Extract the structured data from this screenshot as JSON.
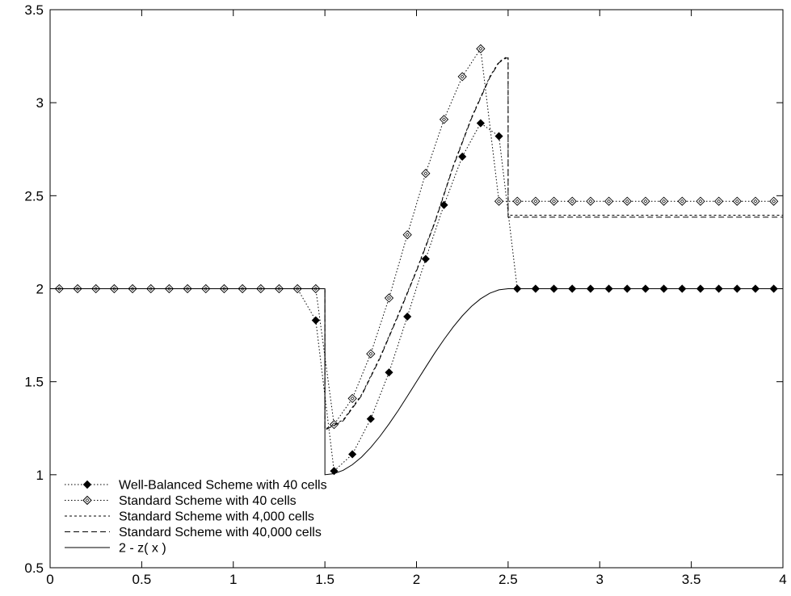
{
  "chart_data": {
    "type": "line",
    "title": "",
    "xlabel": "",
    "ylabel": "",
    "xlim": [
      0,
      4
    ],
    "ylim": [
      0.5,
      3.5
    ],
    "xticks": [
      "0",
      "0.5",
      "1",
      "1.5",
      "2",
      "2.5",
      "3",
      "3.5",
      "4"
    ],
    "yticks": [
      "0.5",
      "1",
      "1.5",
      "2",
      "2.5",
      "3",
      "3.5"
    ],
    "grid": false,
    "legend_position": "bottom-left",
    "series": [
      {
        "name": "Well-Balanced Scheme with 40 cells",
        "marker": "filled-diamond",
        "line": "dotted",
        "x": [
          0.05,
          0.15,
          0.25,
          0.35,
          0.45,
          0.55,
          0.65,
          0.75,
          0.85,
          0.95,
          1.05,
          1.15,
          1.25,
          1.35,
          1.45,
          1.55,
          1.65,
          1.75,
          1.85,
          1.95,
          2.05,
          2.15,
          2.25,
          2.35,
          2.45,
          2.55,
          2.65,
          2.75,
          2.85,
          2.95,
          3.05,
          3.15,
          3.25,
          3.35,
          3.45,
          3.55,
          3.65,
          3.75,
          3.85,
          3.95
        ],
        "y": [
          2,
          2,
          2,
          2,
          2,
          2,
          2,
          2,
          2,
          2,
          2,
          2,
          2,
          2,
          1.83,
          1.02,
          1.11,
          1.3,
          1.55,
          1.85,
          2.16,
          2.45,
          2.71,
          2.89,
          2.82,
          2,
          2,
          2,
          2,
          2,
          2,
          2,
          2,
          2,
          2,
          2,
          2,
          2,
          2,
          2
        ]
      },
      {
        "name": "Standard Scheme with 40 cells",
        "marker": "open-diamond",
        "line": "dotted",
        "x": [
          0.05,
          0.15,
          0.25,
          0.35,
          0.45,
          0.55,
          0.65,
          0.75,
          0.85,
          0.95,
          1.05,
          1.15,
          1.25,
          1.35,
          1.45,
          1.55,
          1.65,
          1.75,
          1.85,
          1.95,
          2.05,
          2.15,
          2.25,
          2.35,
          2.45,
          2.55,
          2.65,
          2.75,
          2.85,
          2.95,
          3.05,
          3.15,
          3.25,
          3.35,
          3.45,
          3.55,
          3.65,
          3.75,
          3.85,
          3.95
        ],
        "y": [
          2,
          2,
          2,
          2,
          2,
          2,
          2,
          2,
          2,
          2,
          2,
          2,
          2,
          2,
          2,
          1.27,
          1.41,
          1.65,
          1.95,
          2.29,
          2.62,
          2.91,
          3.14,
          3.29,
          2.47,
          2.47,
          2.47,
          2.47,
          2.47,
          2.47,
          2.47,
          2.47,
          2.47,
          2.47,
          2.47,
          2.47,
          2.47,
          2.47,
          2.47,
          2.47
        ]
      },
      {
        "name": "Standard Scheme with 4,000 cells",
        "line": "short-dash",
        "x": [
          0,
          1.5,
          1.5,
          1.6,
          1.7,
          1.8,
          1.9,
          2.0,
          2.1,
          2.2,
          2.3,
          2.4,
          2.45,
          2.49,
          2.5,
          2.5,
          4
        ],
        "y": [
          2,
          2,
          1.245,
          1.295,
          1.43,
          1.63,
          1.86,
          2.1,
          2.36,
          2.66,
          2.92,
          3.14,
          3.22,
          3.245,
          3.245,
          2.395,
          2.395
        ]
      },
      {
        "name": "Standard Scheme with 40,000 cells",
        "line": "long-dash",
        "x": [
          0,
          1.5,
          1.5,
          1.6,
          1.7,
          1.8,
          1.9,
          2.0,
          2.1,
          2.2,
          2.3,
          2.4,
          2.45,
          2.49,
          2.5,
          2.5,
          4
        ],
        "y": [
          2,
          2,
          1.24,
          1.29,
          1.425,
          1.625,
          1.855,
          2.095,
          2.355,
          2.655,
          2.915,
          3.135,
          3.215,
          3.24,
          3.24,
          2.385,
          2.385
        ]
      },
      {
        "name": "2 - z( x )",
        "line": "solid",
        "x": [
          0,
          1.5,
          1.5,
          1.55,
          1.6,
          1.65,
          1.7,
          1.75,
          1.8,
          1.85,
          1.9,
          1.95,
          2.0,
          2.05,
          2.1,
          2.15,
          2.2,
          2.25,
          2.3,
          2.35,
          2.4,
          2.45,
          2.5,
          2.5,
          4
        ],
        "y": [
          2,
          2,
          1.0,
          1.006,
          1.024,
          1.054,
          1.095,
          1.146,
          1.206,
          1.273,
          1.345,
          1.422,
          1.5,
          1.578,
          1.655,
          1.727,
          1.794,
          1.854,
          1.905,
          1.946,
          1.976,
          1.994,
          2.0,
          2.0,
          2.0
        ],
        "note_y_transform": "none"
      }
    ]
  }
}
